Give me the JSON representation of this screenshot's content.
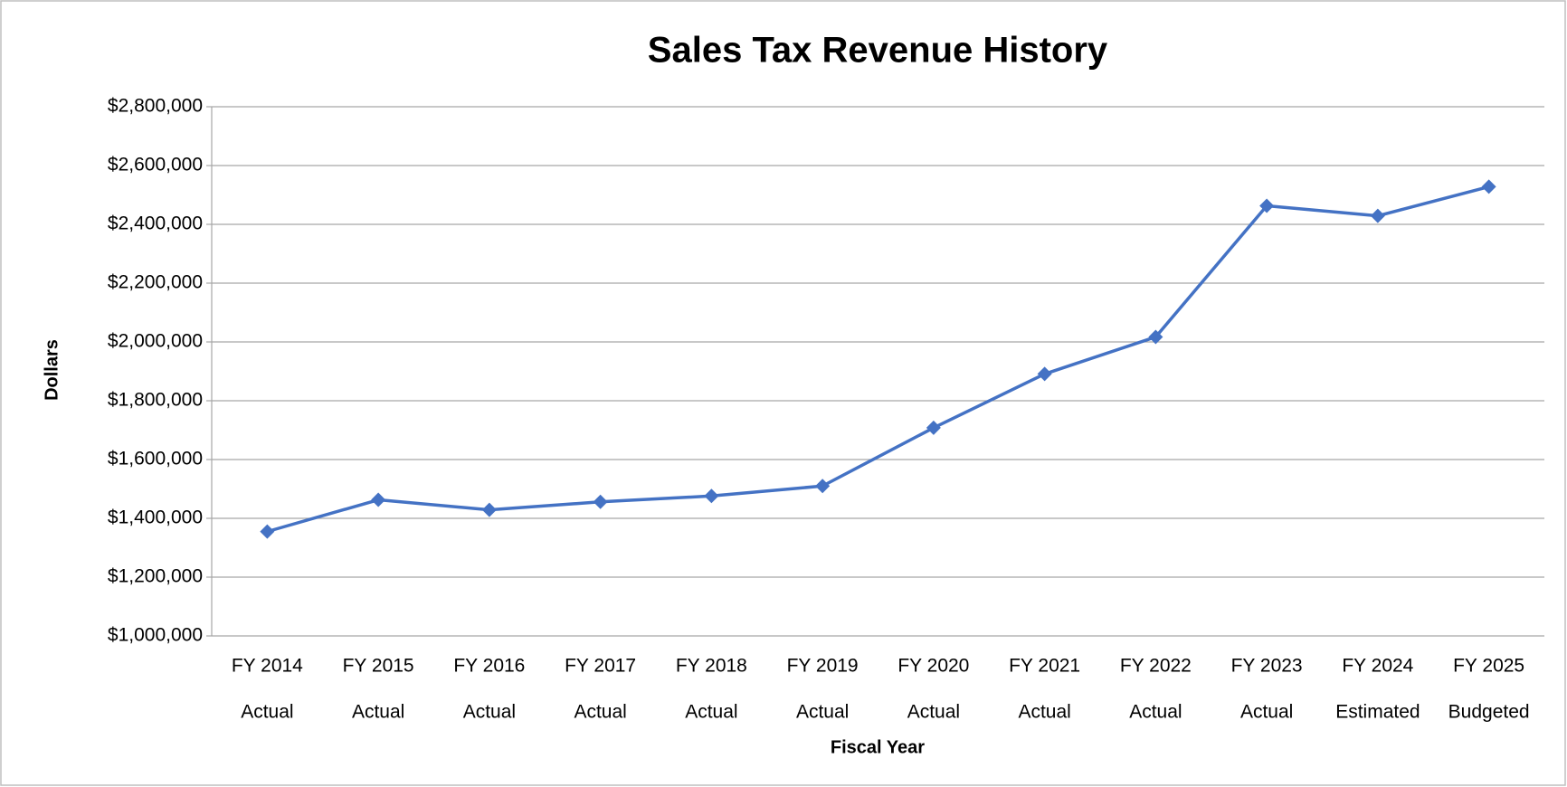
{
  "chart_data": {
    "type": "line",
    "title": "Sales Tax Revenue History",
    "x_label": "Fiscal Year",
    "y_label": "Dollars",
    "categories": [
      [
        "FY 2014",
        "Actual"
      ],
      [
        "FY 2015",
        "Actual"
      ],
      [
        "FY 2016",
        "Actual"
      ],
      [
        "FY 2017",
        "Actual"
      ],
      [
        "FY 2018",
        "Actual"
      ],
      [
        "FY 2019",
        "Actual"
      ],
      [
        "FY 2020",
        "Actual"
      ],
      [
        "FY 2021",
        "Actual"
      ],
      [
        "FY 2022",
        "Actual"
      ],
      [
        "FY 2023",
        "Actual"
      ],
      [
        "FY 2024",
        "Estimated"
      ],
      [
        "FY 2025",
        "Budgeted"
      ]
    ],
    "values": [
      1355000,
      1463000,
      1429000,
      1456000,
      1476000,
      1510000,
      1708000,
      1891000,
      2017000,
      2463000,
      2429000,
      2528000
    ],
    "color": "#4472c4",
    "ylim": [
      1000000,
      2800000
    ],
    "yticks": [
      {
        "value": 1000000,
        "label": "$1,000,000"
      },
      {
        "value": 1200000,
        "label": "$1,200,000"
      },
      {
        "value": 1400000,
        "label": "$1,400,000"
      },
      {
        "value": 1600000,
        "label": "$1,600,000"
      },
      {
        "value": 1800000,
        "label": "$1,800,000"
      },
      {
        "value": 2000000,
        "label": "$2,000,000"
      },
      {
        "value": 2200000,
        "label": "$2,200,000"
      },
      {
        "value": 2400000,
        "label": "$2,400,000"
      },
      {
        "value": 2600000,
        "label": "$2,600,000"
      },
      {
        "value": 2800000,
        "label": "$2,800,000"
      }
    ],
    "grid": true
  }
}
